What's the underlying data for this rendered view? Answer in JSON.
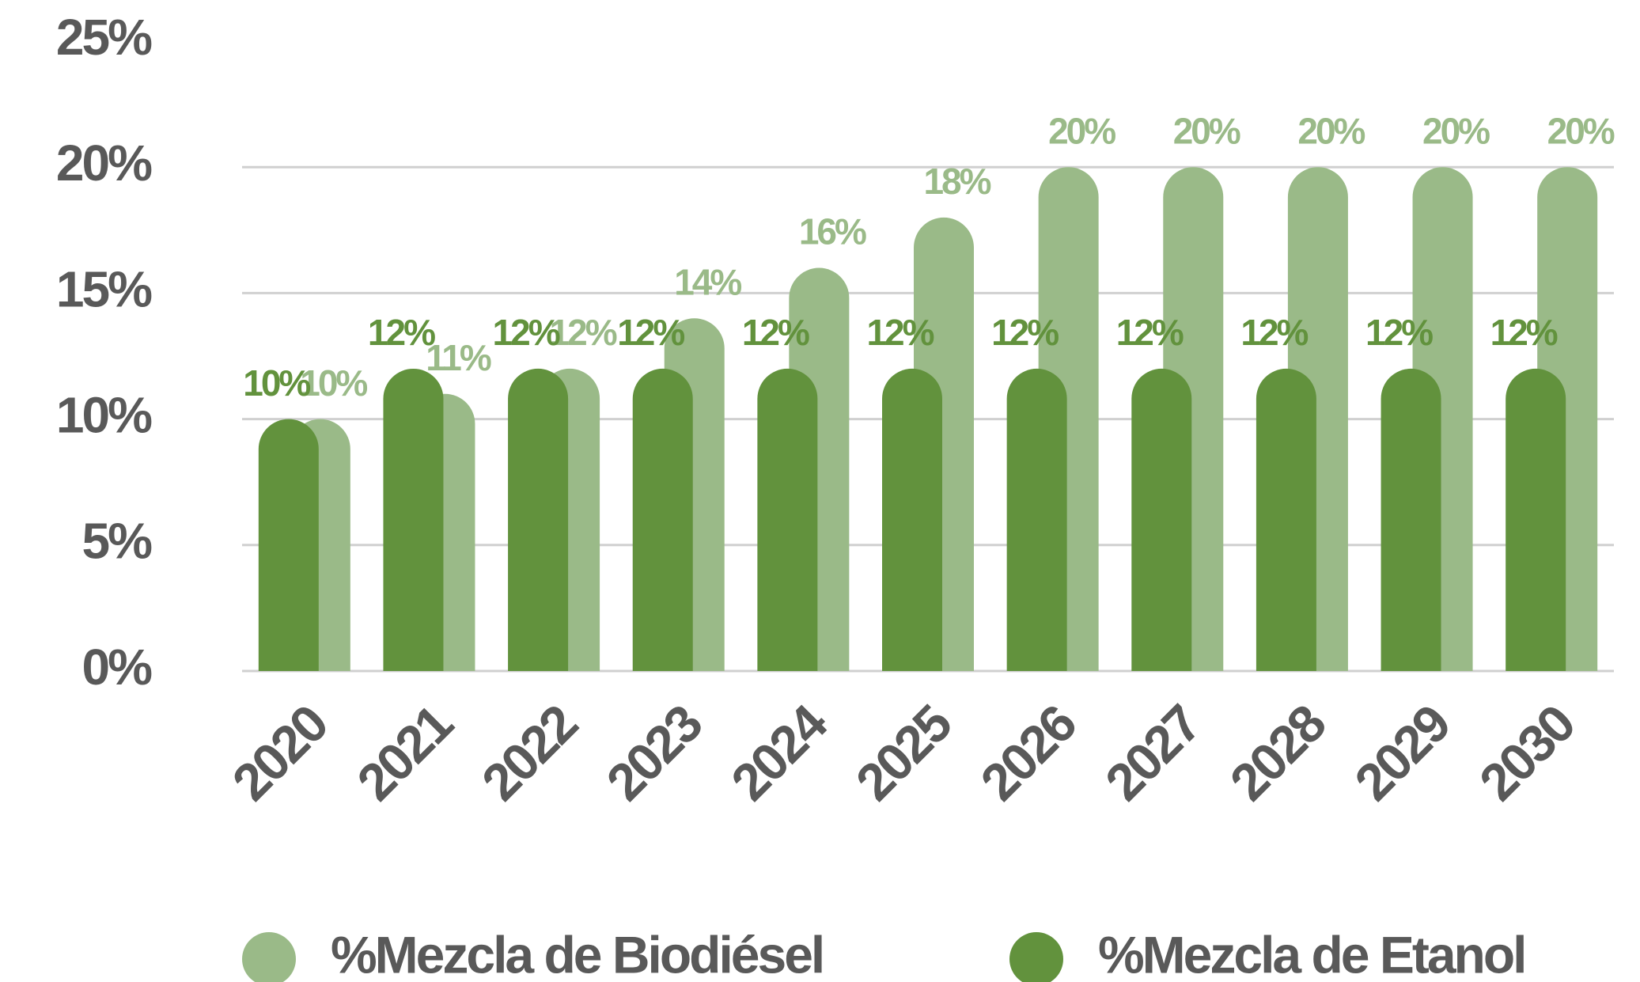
{
  "chart_data": {
    "type": "bar",
    "categories": [
      "2020",
      "2021",
      "2022",
      "2023",
      "2024",
      "2025",
      "2026",
      "2027",
      "2028",
      "2029",
      "2030"
    ],
    "series": [
      {
        "name": "%Mezcla de Biodiésel",
        "color": "#9aba88",
        "values": [
          10,
          11,
          12,
          14,
          16,
          18,
          20,
          20,
          20,
          20,
          20
        ],
        "value_labels": [
          "10%",
          "11%",
          "12%",
          "14%",
          "16%",
          "18%",
          "20%",
          "20%",
          "20%",
          "20%",
          "20%"
        ]
      },
      {
        "name": "%Mezcla de Etanol",
        "color": "#62923d",
        "values": [
          10,
          12,
          12,
          12,
          12,
          12,
          12,
          12,
          12,
          12,
          12
        ],
        "value_labels": [
          "10%",
          "12%",
          "12%",
          "12%",
          "12%",
          "12%",
          "12%",
          "12%",
          "12%",
          "12%",
          "12%"
        ]
      }
    ],
    "ylim": [
      0,
      25
    ],
    "yticks": [
      {
        "value": 0,
        "label": "0%"
      },
      {
        "value": 5,
        "label": "5%"
      },
      {
        "value": 10,
        "label": "10%"
      },
      {
        "value": 15,
        "label": "15%"
      },
      {
        "value": 20,
        "label": "20%"
      },
      {
        "value": 25,
        "label": "25%"
      }
    ],
    "grid": true,
    "legend": "bottom"
  }
}
